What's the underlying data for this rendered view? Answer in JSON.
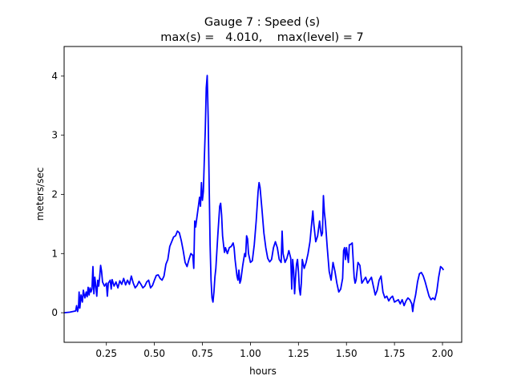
{
  "chart_data": {
    "type": "line",
    "title_line1": "Gauge 7 : Speed (s)",
    "title_line2": "max(s) =   4.010,    max(level) = 7",
    "xlabel": "hours",
    "ylabel": "meters/sec",
    "xlim": [
      0.03,
      2.1
    ],
    "ylim": [
      -0.5,
      4.5
    ],
    "xticks": [
      0.25,
      0.5,
      0.75,
      1.0,
      1.25,
      1.5,
      1.75,
      2.0
    ],
    "xtick_labels": [
      "0.25",
      "0.50",
      "0.75",
      "1.00",
      "1.25",
      "1.50",
      "1.75",
      "2.00"
    ],
    "yticks": [
      0,
      1,
      2,
      3,
      4
    ],
    "ytick_labels": [
      "0",
      "1",
      "2",
      "3",
      "4"
    ],
    "grid": false,
    "series": [
      {
        "color": "#0000ff",
        "points": [
          [
            0.03,
            0.0
          ],
          [
            0.06,
            0.01
          ],
          [
            0.09,
            0.03
          ],
          [
            0.095,
            0.12
          ],
          [
            0.1,
            0.02
          ],
          [
            0.105,
            0.1
          ],
          [
            0.108,
            0.35
          ],
          [
            0.112,
            0.08
          ],
          [
            0.118,
            0.3
          ],
          [
            0.125,
            0.18
          ],
          [
            0.13,
            0.38
          ],
          [
            0.138,
            0.25
          ],
          [
            0.145,
            0.35
          ],
          [
            0.15,
            0.27
          ],
          [
            0.155,
            0.43
          ],
          [
            0.16,
            0.3
          ],
          [
            0.165,
            0.42
          ],
          [
            0.17,
            0.35
          ],
          [
            0.175,
            0.4
          ],
          [
            0.18,
            0.78
          ],
          [
            0.185,
            0.32
          ],
          [
            0.19,
            0.6
          ],
          [
            0.195,
            0.45
          ],
          [
            0.2,
            0.28
          ],
          [
            0.205,
            0.55
          ],
          [
            0.21,
            0.45
          ],
          [
            0.215,
            0.6
          ],
          [
            0.22,
            0.8
          ],
          [
            0.225,
            0.7
          ],
          [
            0.23,
            0.52
          ],
          [
            0.24,
            0.45
          ],
          [
            0.25,
            0.5
          ],
          [
            0.255,
            0.28
          ],
          [
            0.26,
            0.5
          ],
          [
            0.27,
            0.55
          ],
          [
            0.275,
            0.4
          ],
          [
            0.28,
            0.56
          ],
          [
            0.29,
            0.45
          ],
          [
            0.3,
            0.52
          ],
          [
            0.31,
            0.42
          ],
          [
            0.32,
            0.54
          ],
          [
            0.33,
            0.48
          ],
          [
            0.34,
            0.58
          ],
          [
            0.35,
            0.47
          ],
          [
            0.36,
            0.55
          ],
          [
            0.37,
            0.48
          ],
          [
            0.38,
            0.62
          ],
          [
            0.39,
            0.5
          ],
          [
            0.4,
            0.42
          ],
          [
            0.41,
            0.46
          ],
          [
            0.42,
            0.53
          ],
          [
            0.43,
            0.48
          ],
          [
            0.44,
            0.42
          ],
          [
            0.45,
            0.45
          ],
          [
            0.46,
            0.52
          ],
          [
            0.47,
            0.55
          ],
          [
            0.48,
            0.42
          ],
          [
            0.49,
            0.46
          ],
          [
            0.5,
            0.55
          ],
          [
            0.51,
            0.63
          ],
          [
            0.52,
            0.64
          ],
          [
            0.53,
            0.58
          ],
          [
            0.54,
            0.55
          ],
          [
            0.55,
            0.62
          ],
          [
            0.56,
            0.82
          ],
          [
            0.57,
            0.9
          ],
          [
            0.58,
            1.12
          ],
          [
            0.59,
            1.2
          ],
          [
            0.6,
            1.28
          ],
          [
            0.61,
            1.3
          ],
          [
            0.62,
            1.38
          ],
          [
            0.63,
            1.35
          ],
          [
            0.64,
            1.22
          ],
          [
            0.65,
            1.05
          ],
          [
            0.66,
            0.85
          ],
          [
            0.67,
            0.78
          ],
          [
            0.68,
            0.9
          ],
          [
            0.69,
            1.0
          ],
          [
            0.7,
            0.97
          ],
          [
            0.705,
            0.75
          ],
          [
            0.71,
            1.55
          ],
          [
            0.715,
            1.45
          ],
          [
            0.72,
            1.58
          ],
          [
            0.73,
            1.82
          ],
          [
            0.735,
            1.95
          ],
          [
            0.74,
            1.8
          ],
          [
            0.745,
            2.2
          ],
          [
            0.75,
            1.9
          ],
          [
            0.755,
            2.05
          ],
          [
            0.76,
            2.6
          ],
          [
            0.765,
            3.1
          ],
          [
            0.77,
            3.8
          ],
          [
            0.775,
            4.01
          ],
          [
            0.78,
            3.3
          ],
          [
            0.785,
            2.2
          ],
          [
            0.79,
            1.15
          ],
          [
            0.795,
            0.55
          ],
          [
            0.8,
            0.25
          ],
          [
            0.805,
            0.18
          ],
          [
            0.81,
            0.35
          ],
          [
            0.815,
            0.6
          ],
          [
            0.82,
            0.75
          ],
          [
            0.83,
            1.3
          ],
          [
            0.84,
            1.8
          ],
          [
            0.845,
            1.85
          ],
          [
            0.85,
            1.65
          ],
          [
            0.855,
            1.3
          ],
          [
            0.86,
            1.15
          ],
          [
            0.865,
            1.02
          ],
          [
            0.87,
            1.1
          ],
          [
            0.88,
            1.0
          ],
          [
            0.89,
            1.1
          ],
          [
            0.9,
            1.12
          ],
          [
            0.91,
            1.18
          ],
          [
            0.915,
            1.1
          ],
          [
            0.92,
            0.9
          ],
          [
            0.93,
            0.62
          ],
          [
            0.935,
            0.55
          ],
          [
            0.94,
            0.72
          ],
          [
            0.945,
            0.5
          ],
          [
            0.95,
            0.55
          ],
          [
            0.96,
            0.8
          ],
          [
            0.97,
            1.0
          ],
          [
            0.975,
            0.95
          ],
          [
            0.98,
            1.3
          ],
          [
            0.985,
            1.25
          ],
          [
            0.99,
            1.0
          ],
          [
            1.0,
            0.85
          ],
          [
            1.01,
            0.88
          ],
          [
            1.02,
            1.15
          ],
          [
            1.03,
            1.55
          ],
          [
            1.04,
            2.05
          ],
          [
            1.045,
            2.2
          ],
          [
            1.05,
            2.12
          ],
          [
            1.06,
            1.75
          ],
          [
            1.07,
            1.35
          ],
          [
            1.08,
            1.1
          ],
          [
            1.09,
            0.92
          ],
          [
            1.1,
            0.86
          ],
          [
            1.11,
            0.9
          ],
          [
            1.12,
            1.1
          ],
          [
            1.13,
            1.2
          ],
          [
            1.14,
            1.1
          ],
          [
            1.15,
            0.9
          ],
          [
            1.16,
            0.85
          ],
          [
            1.165,
            1.38
          ],
          [
            1.17,
            1.0
          ],
          [
            1.18,
            0.85
          ],
          [
            1.19,
            0.92
          ],
          [
            1.2,
            1.05
          ],
          [
            1.21,
            0.92
          ],
          [
            1.215,
            0.4
          ],
          [
            1.22,
            0.9
          ],
          [
            1.225,
            0.72
          ],
          [
            1.23,
            0.32
          ],
          [
            1.235,
            0.6
          ],
          [
            1.24,
            0.82
          ],
          [
            1.245,
            0.9
          ],
          [
            1.25,
            0.7
          ],
          [
            1.255,
            0.4
          ],
          [
            1.26,
            0.3
          ],
          [
            1.265,
            0.5
          ],
          [
            1.27,
            0.9
          ],
          [
            1.28,
            0.75
          ],
          [
            1.29,
            0.85
          ],
          [
            1.3,
            1.0
          ],
          [
            1.31,
            1.2
          ],
          [
            1.32,
            1.55
          ],
          [
            1.325,
            1.72
          ],
          [
            1.33,
            1.5
          ],
          [
            1.34,
            1.2
          ],
          [
            1.35,
            1.3
          ],
          [
            1.36,
            1.55
          ],
          [
            1.365,
            1.4
          ],
          [
            1.37,
            1.3
          ],
          [
            1.375,
            1.35
          ],
          [
            1.38,
            1.98
          ],
          [
            1.385,
            1.7
          ],
          [
            1.39,
            1.55
          ],
          [
            1.4,
            1.1
          ],
          [
            1.41,
            0.7
          ],
          [
            1.42,
            0.55
          ],
          [
            1.43,
            0.85
          ],
          [
            1.44,
            0.7
          ],
          [
            1.45,
            0.5
          ],
          [
            1.46,
            0.35
          ],
          [
            1.47,
            0.4
          ],
          [
            1.48,
            0.58
          ],
          [
            1.485,
            1.05
          ],
          [
            1.49,
            1.1
          ],
          [
            1.495,
            0.9
          ],
          [
            1.5,
            1.1
          ],
          [
            1.51,
            0.85
          ],
          [
            1.515,
            1.15
          ],
          [
            1.52,
            1.15
          ],
          [
            1.53,
            1.18
          ],
          [
            1.54,
            0.6
          ],
          [
            1.545,
            0.5
          ],
          [
            1.55,
            0.55
          ],
          [
            1.56,
            0.85
          ],
          [
            1.57,
            0.8
          ],
          [
            1.58,
            0.5
          ],
          [
            1.59,
            0.55
          ],
          [
            1.6,
            0.6
          ],
          [
            1.61,
            0.5
          ],
          [
            1.62,
            0.55
          ],
          [
            1.63,
            0.6
          ],
          [
            1.64,
            0.45
          ],
          [
            1.65,
            0.3
          ],
          [
            1.66,
            0.38
          ],
          [
            1.67,
            0.55
          ],
          [
            1.68,
            0.62
          ],
          [
            1.69,
            0.35
          ],
          [
            1.7,
            0.25
          ],
          [
            1.71,
            0.28
          ],
          [
            1.72,
            0.2
          ],
          [
            1.73,
            0.25
          ],
          [
            1.74,
            0.28
          ],
          [
            1.75,
            0.18
          ],
          [
            1.76,
            0.2
          ],
          [
            1.77,
            0.22
          ],
          [
            1.78,
            0.15
          ],
          [
            1.79,
            0.22
          ],
          [
            1.8,
            0.12
          ],
          [
            1.81,
            0.2
          ],
          [
            1.82,
            0.25
          ],
          [
            1.83,
            0.22
          ],
          [
            1.84,
            0.15
          ],
          [
            1.845,
            0.02
          ],
          [
            1.85,
            0.15
          ],
          [
            1.86,
            0.3
          ],
          [
            1.87,
            0.52
          ],
          [
            1.88,
            0.66
          ],
          [
            1.89,
            0.68
          ],
          [
            1.9,
            0.62
          ],
          [
            1.91,
            0.52
          ],
          [
            1.92,
            0.4
          ],
          [
            1.93,
            0.28
          ],
          [
            1.94,
            0.22
          ],
          [
            1.95,
            0.25
          ],
          [
            1.96,
            0.22
          ],
          [
            1.97,
            0.35
          ],
          [
            1.98,
            0.6
          ],
          [
            1.99,
            0.78
          ],
          [
            2.0,
            0.75
          ],
          [
            2.005,
            0.72
          ]
        ]
      }
    ]
  }
}
